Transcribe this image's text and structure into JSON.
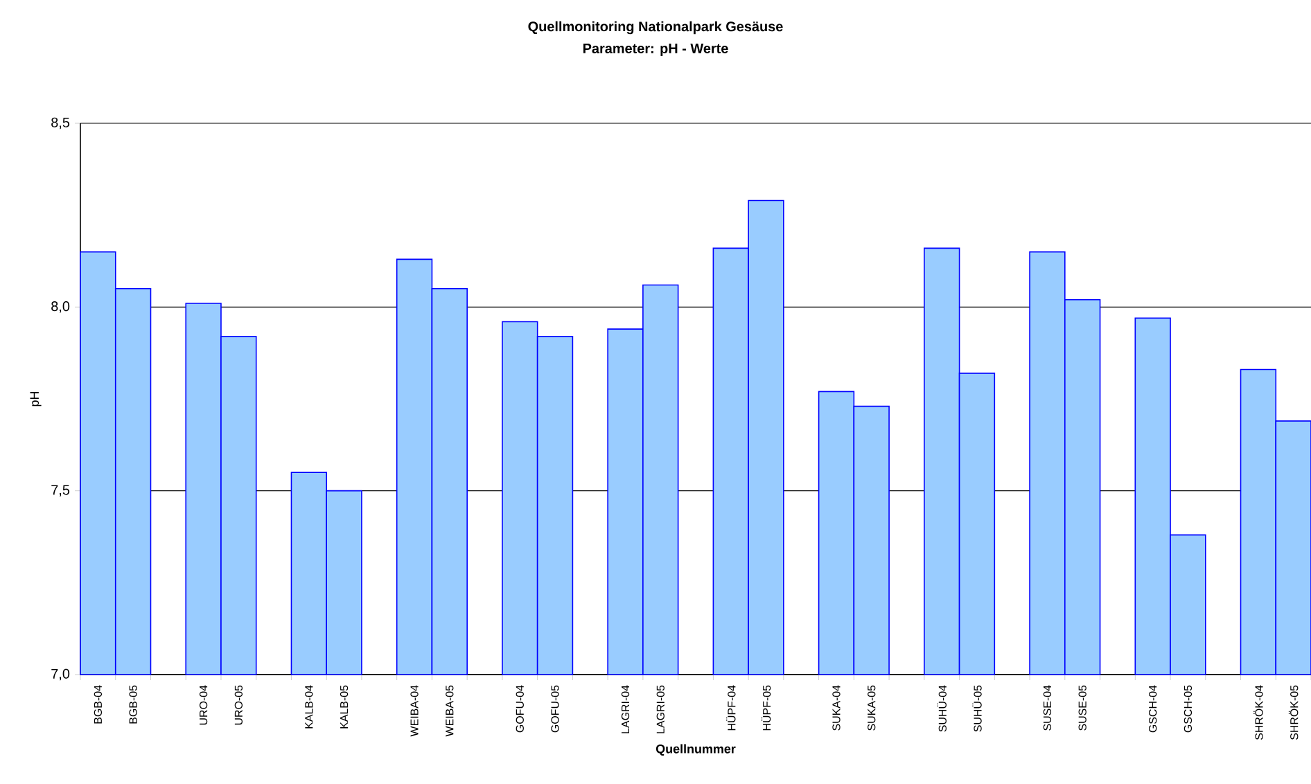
{
  "chart_data": {
    "type": "bar",
    "title": "Quellmonitoring Nationalpark Gesäuse",
    "subtitle": "Parameter: pH - Werte",
    "xlabel": "Quellnummer",
    "ylabel": "pH",
    "categories": [
      "BGB-04",
      "BGB-05",
      null,
      "URO-04",
      "URO-05",
      null,
      "KALB-04",
      "KALB-05",
      null,
      "WEIBA-04",
      "WEIBA-05",
      null,
      "GOFU-04",
      "GOFU-05",
      null,
      "LAGRI-04",
      "LAGRI-05",
      null,
      "HÜPF-04",
      "HÜPF-05",
      null,
      "SUKA-04",
      "SUKA-05",
      null,
      "SUHÜ-04",
      "SUHÜ-05",
      null,
      "SUSE-04",
      "SUSE-05",
      null,
      "GSCH-04",
      "GSCH-05",
      null,
      "SHRÖK-04",
      "SHRÖK-05"
    ],
    "values": [
      8.15,
      8.05,
      null,
      8.01,
      7.92,
      null,
      7.55,
      7.5,
      null,
      8.13,
      8.05,
      null,
      7.96,
      7.92,
      null,
      7.94,
      8.06,
      null,
      8.16,
      8.29,
      null,
      7.77,
      7.73,
      null,
      8.16,
      7.82,
      null,
      8.15,
      8.02,
      null,
      7.97,
      7.38,
      null,
      7.83,
      7.69
    ],
    "color": "#99ccff",
    "ylim": [
      7.0,
      8.5
    ],
    "yticks": [
      {
        "value": 7.0,
        "label": "7,0"
      },
      {
        "value": 7.5,
        "label": "7,5"
      },
      {
        "value": 8.0,
        "label": "8,0"
      },
      {
        "value": 8.5,
        "label": "8,5"
      }
    ],
    "grid": "y"
  }
}
